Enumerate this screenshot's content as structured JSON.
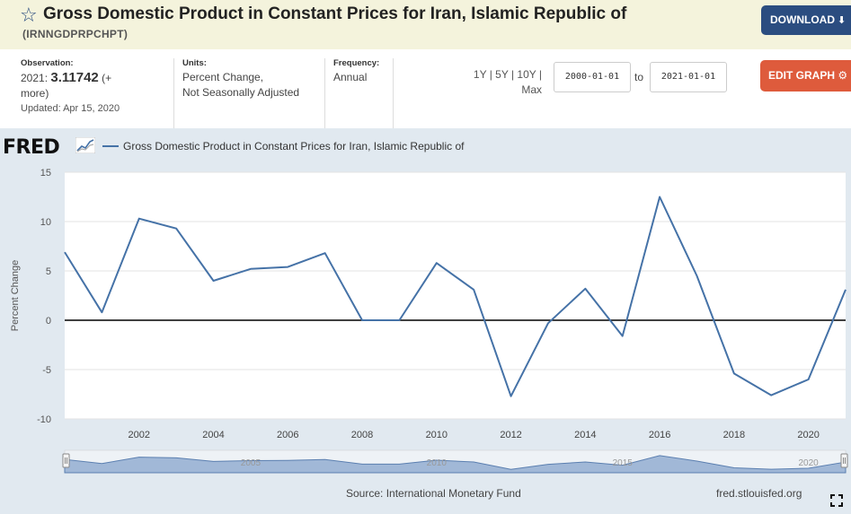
{
  "header": {
    "title": "Gross Domestic Product in Constant Prices for Iran, Islamic Republic of",
    "series_id": "(IRNNGDPRPCHPT)",
    "download_label": "DOWNLOAD",
    "star_icon": "star-outline-icon",
    "download_icon": "download-arrow-icon"
  },
  "meta": {
    "observation_label": "Observation:",
    "observation_date": "2021:",
    "observation_value": "3.11742",
    "observation_more": "(+",
    "observation_more2": "more)",
    "updated": "Updated: Apr 15, 2020",
    "units_label": "Units:",
    "units_line1": "Percent Change,",
    "units_line2": "Not Seasonally Adjusted",
    "frequency_label": "Frequency:",
    "frequency_value": "Annual"
  },
  "controls": {
    "range_line1": "1Y | 5Y | 10Y |",
    "range_line2": "Max",
    "start_date": "2000-01-01",
    "to_label": "to",
    "end_date": "2021-01-01",
    "edit_label": "EDIT GRAPH",
    "edit_icon": "gear-icon"
  },
  "chart_header": {
    "logo_text": "FRED",
    "legend_label": "Gross Domestic Product in Constant Prices for Iran, Islamic Republic of"
  },
  "footer": {
    "source": "Source: International Monetary Fund",
    "url": "fred.stlouisfed.org"
  },
  "colors": {
    "series": "#4572a7",
    "background": "#e1e9f0",
    "download_button": "#2b4d80",
    "edit_button": "#de5b3c"
  },
  "chart_data": {
    "type": "line",
    "title": "Gross Domestic Product in Constant Prices for Iran, Islamic Republic of",
    "xlabel": "",
    "ylabel": "Percent Change",
    "x": [
      2000,
      2001,
      2002,
      2003,
      2004,
      2005,
      2006,
      2007,
      2008,
      2009,
      2010,
      2011,
      2012,
      2013,
      2014,
      2015,
      2016,
      2017,
      2018,
      2019,
      2020,
      2021
    ],
    "series": [
      {
        "name": "Gross Domestic Product in Constant Prices for Iran, Islamic Republic of",
        "values": [
          6.9,
          0.8,
          10.3,
          9.3,
          4.0,
          5.2,
          5.4,
          6.8,
          0.0,
          0.0,
          5.8,
          3.1,
          -7.7,
          -0.3,
          3.2,
          -1.6,
          12.5,
          4.5,
          -5.4,
          -7.6,
          -6.0,
          3.1
        ]
      }
    ],
    "xlim": [
      2000,
      2021
    ],
    "ylim": [
      -10,
      15
    ],
    "xticks": [
      "2002",
      "2004",
      "2006",
      "2008",
      "2010",
      "2012",
      "2014",
      "2016",
      "2018",
      "2020"
    ],
    "yticks": [
      "15",
      "10",
      "5",
      "0",
      "-5",
      "-10"
    ],
    "navigator_labels": [
      "2005",
      "2010",
      "2015",
      "2020"
    ],
    "grid": true
  }
}
